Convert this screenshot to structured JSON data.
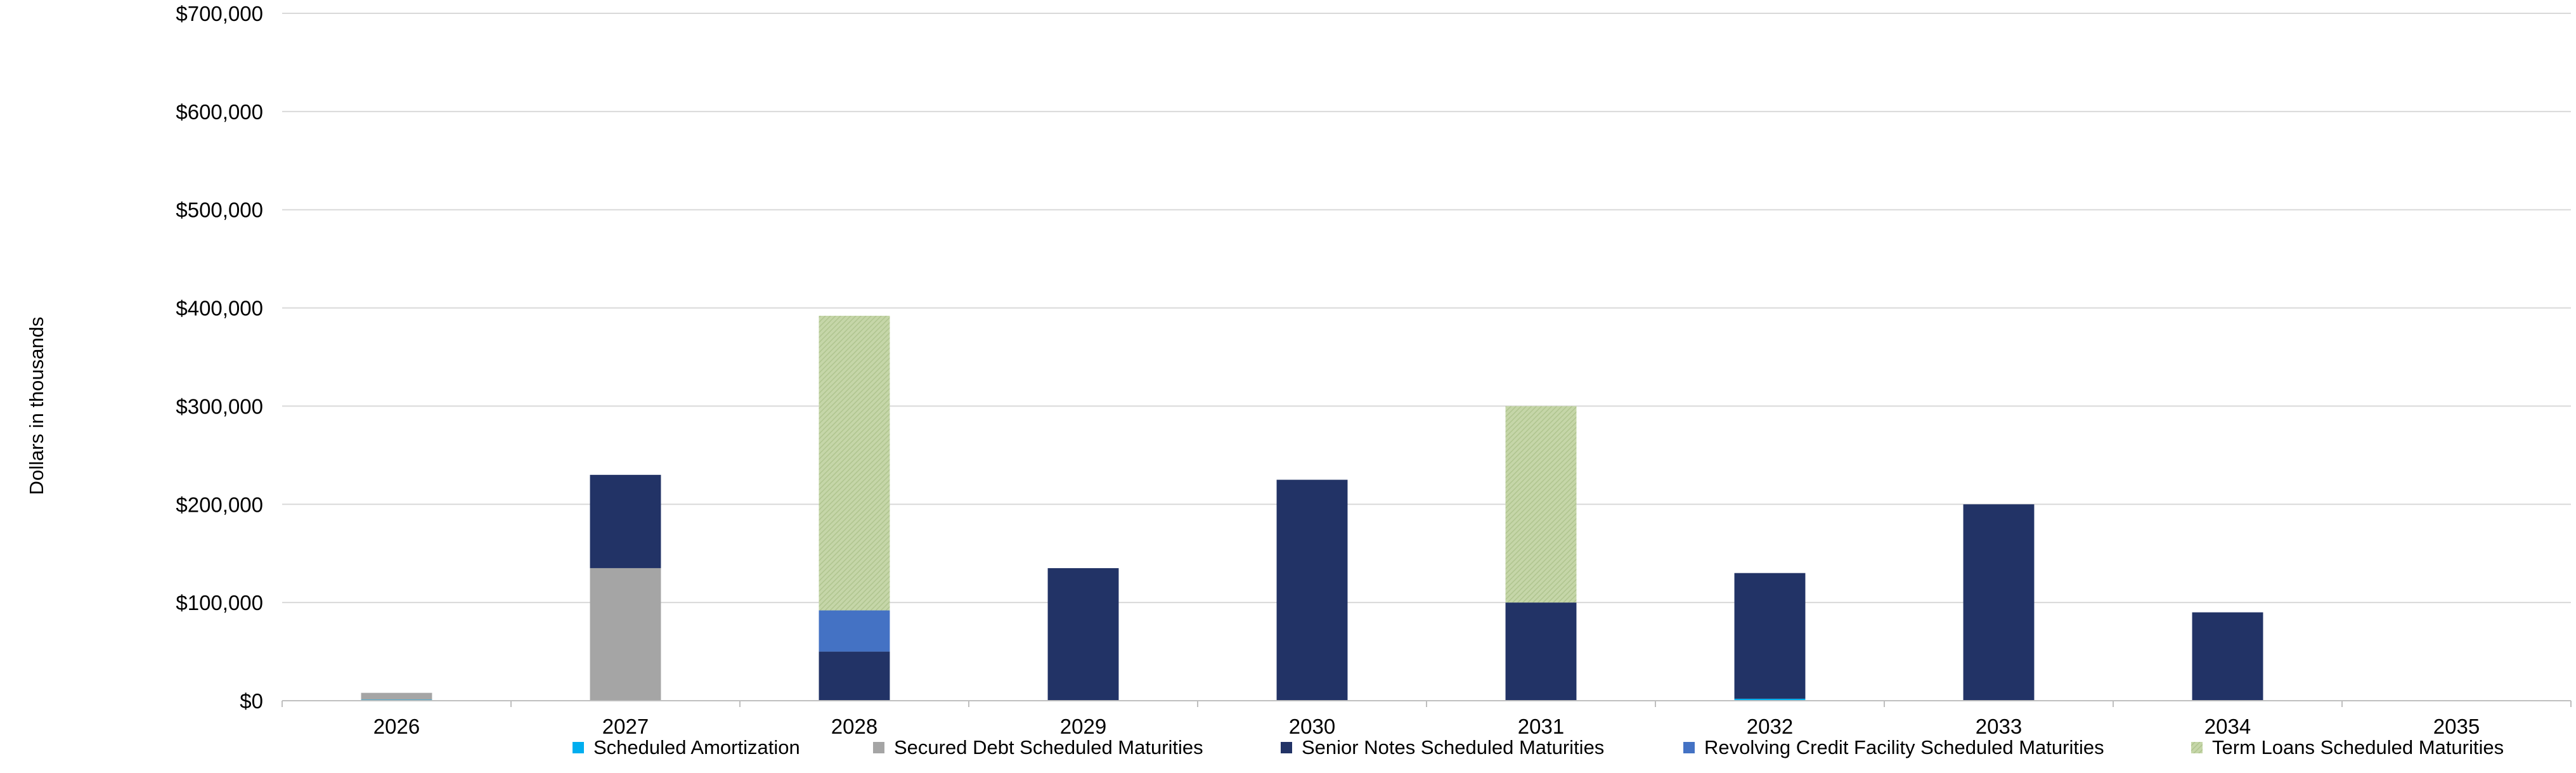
{
  "chart_data": {
    "type": "bar",
    "stacked": true,
    "ylabel": "Dollars in thousands",
    "ylim": [
      0,
      700000
    ],
    "yticks": [
      0,
      100000,
      200000,
      300000,
      400000,
      500000,
      600000,
      700000
    ],
    "ytick_labels": [
      "$0",
      "$100,000",
      "$200,000",
      "$300,000",
      "$400,000",
      "$500,000",
      "$600,000",
      "$700,000"
    ],
    "grid": true,
    "legend_position": "bottom",
    "categories": [
      "2026",
      "2027",
      "2028",
      "2029",
      "2030",
      "2031",
      "2032",
      "2033",
      "2034",
      "2035"
    ],
    "series": [
      {
        "name": "Scheduled Amortization",
        "color": "#00AEEF",
        "pattern": false,
        "values": [
          1000,
          0,
          0,
          0,
          0,
          0,
          2000,
          0,
          0,
          0
        ]
      },
      {
        "name": "Secured Debt Scheduled Maturities",
        "color": "#A5A5A5",
        "pattern": false,
        "values": [
          7000,
          135000,
          0,
          0,
          0,
          0,
          0,
          0,
          0,
          0
        ]
      },
      {
        "name": "Senior Notes Scheduled Maturities",
        "color": "#223366",
        "pattern": false,
        "values": [
          0,
          95000,
          50000,
          135000,
          225000,
          100000,
          128000,
          200000,
          90000,
          0
        ]
      },
      {
        "name": "Revolving Credit Facility Scheduled Maturities",
        "color": "#4472C4",
        "pattern": false,
        "values": [
          0,
          0,
          42000,
          0,
          0,
          0,
          0,
          0,
          0,
          0
        ]
      },
      {
        "name": "Term Loans Scheduled Maturities",
        "color": "#C5D6A8",
        "pattern": true,
        "values": [
          0,
          0,
          300000,
          0,
          0,
          200000,
          0,
          0,
          0,
          0
        ]
      }
    ]
  }
}
